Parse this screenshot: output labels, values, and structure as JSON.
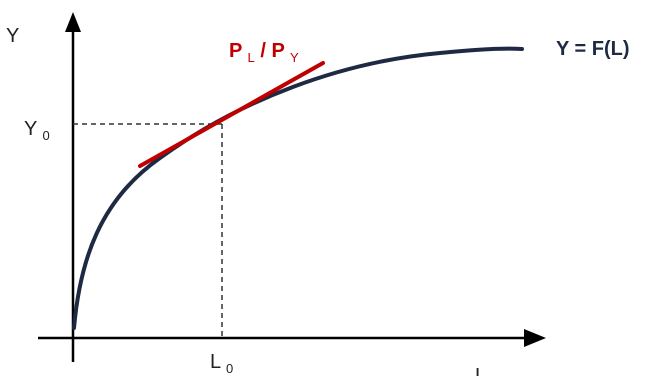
{
  "diagram": {
    "y_axis_label": "Y",
    "x_axis_label": "L",
    "y0_label": {
      "main": "Y",
      "sub": "0"
    },
    "l0_label": {
      "main": "L",
      "sub": "0"
    },
    "curve_label": "Y = F(L)",
    "tangent_label": {
      "p1": "P",
      "p1_sub": "L",
      "slash": " /",
      "p2": "P",
      "p2_sub": "Y"
    },
    "colors": {
      "curve": "#1e2a44",
      "tangent": "#c00000",
      "tangent_label": "#c00000",
      "curve_label": "#1e2a44",
      "axes": "#000000",
      "guide_lines": "#333333"
    }
  }
}
